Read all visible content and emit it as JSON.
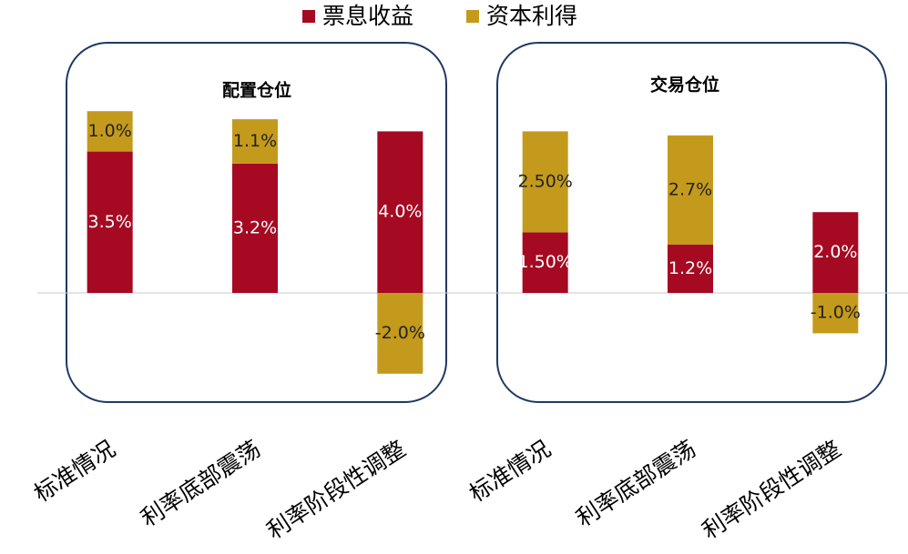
{
  "chart_data": {
    "type": "stacked_bar",
    "categories": [
      "标准情况",
      "利率底部震荡",
      "利率阶段性调整",
      "标准情况",
      "利率底部震荡",
      "利率阶段性调整"
    ],
    "series": [
      {
        "name": "票息收益",
        "color": "#a50a22",
        "values": [
          3.5,
          3.2,
          4.0,
          1.5,
          1.2,
          2.0
        ],
        "value_labels": [
          "3.5%",
          "3.2%",
          "4.0%",
          "1.50%",
          "1.2%",
          "2.0%"
        ]
      },
      {
        "name": "资本利得",
        "color": "#c49a1c",
        "values": [
          1.0,
          1.1,
          -2.0,
          2.5,
          2.7,
          -1.0
        ],
        "value_labels": [
          "1.0%",
          "1.1%",
          "-2.0%",
          "2.50%",
          "2.7%",
          "-1.0%"
        ]
      }
    ],
    "annotations": [
      "配置仓位",
      "交易仓位"
    ],
    "ylim": [
      -3,
      5
    ]
  }
}
